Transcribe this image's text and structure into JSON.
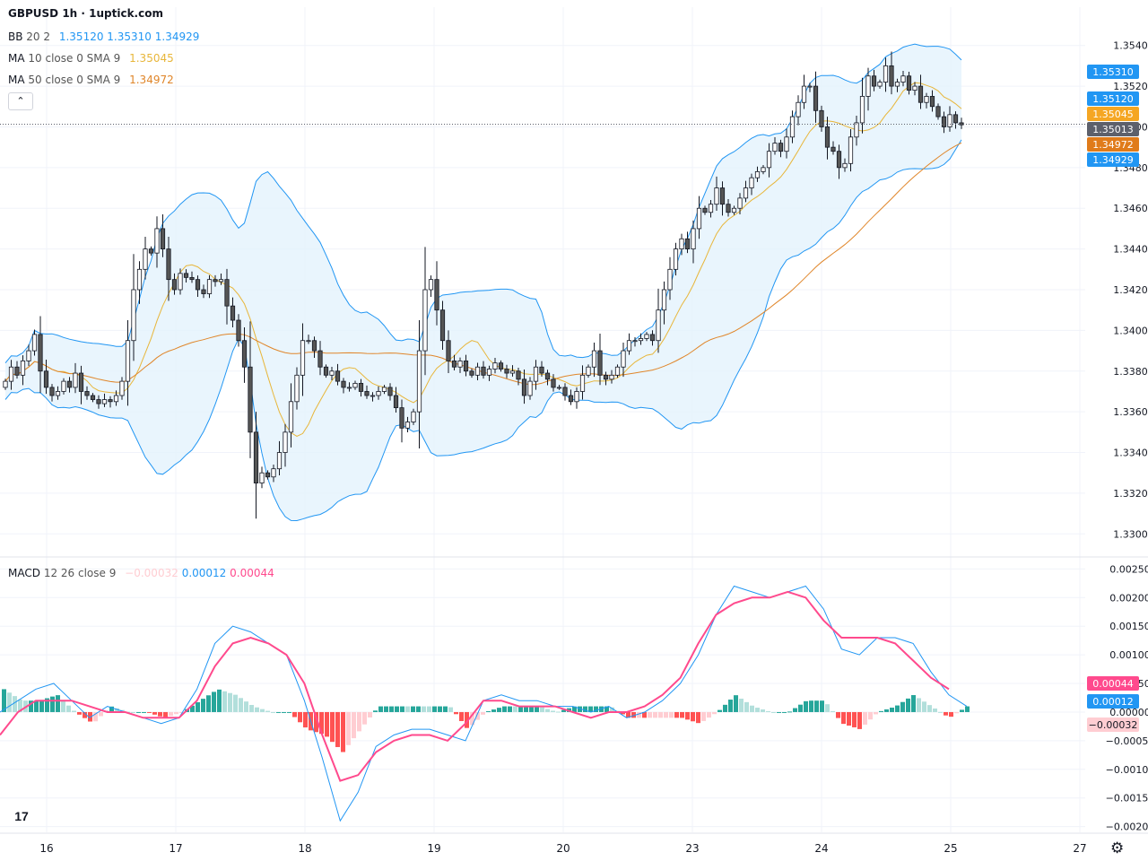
{
  "header": {
    "title": "GBPUSD 1h · 1uptick.com"
  },
  "legend": {
    "bb": {
      "label": "BB",
      "params": "20 2",
      "basis": "1.35120",
      "upper": "1.35310",
      "lower": "1.34929"
    },
    "ma10": {
      "label": "MA",
      "params": "10 close 0 SMA 9",
      "value": "1.35045"
    },
    "ma50": {
      "label": "MA",
      "params": "50 close 0 SMA 9",
      "value": "1.34972"
    },
    "macd": {
      "label": "MACD",
      "params": "12 26 close 9",
      "hist": "−0.00032",
      "macd": "0.00012",
      "signal": "0.00044"
    }
  },
  "colors": {
    "bull": "#ffffff",
    "bear": "#555555",
    "wick": "#131722",
    "bb_line": "#2196f3",
    "bb_fill": "#e3f2fd",
    "ma10": "#e8b63a",
    "ma50": "#e0862a",
    "macd_line": "#2196f3",
    "signal_line": "#ff4a8d",
    "hist_up_strong": "#26a69a",
    "hist_up_weak": "#b2dfdb",
    "hist_down_strong": "#ff5252",
    "hist_down_weak": "#ffcdd2",
    "grid": "#f0f3fa",
    "axis_text": "#131722"
  },
  "icons": {
    "logo": "tradingview-logo-icon",
    "settings": "gear-icon",
    "collapse": "chevron-up-icon"
  },
  "chart_data": [
    {
      "type": "candlestick",
      "symbol": "GBPUSD",
      "timeframe": "1h",
      "ylim": [
        1.329,
        1.355
      ],
      "yticks": [
        "1.35400",
        "1.35200",
        "1.35000",
        "1.34800",
        "1.34600",
        "1.34400",
        "1.34200",
        "1.34000",
        "1.33800",
        "1.33600",
        "1.33400",
        "1.33200",
        "1.33000"
      ],
      "xticks": [
        "16",
        "17",
        "18",
        "19",
        "20",
        "23",
        "24",
        "25",
        "27"
      ],
      "price_labels": [
        {
          "text": "1.35310",
          "value": 1.3531,
          "color": "#2196f3"
        },
        {
          "text": "1.35120",
          "value": 1.3512,
          "color": "#2196f3"
        },
        {
          "text": "1.35045",
          "value": 1.35045,
          "color": "#f5a623"
        },
        {
          "text": "1.35013",
          "value": 1.35013,
          "color": "#5d606b"
        },
        {
          "text": "1.34972",
          "value": 1.34972,
          "color": "#e07b1a"
        },
        {
          "text": "1.34929",
          "value": 1.34929,
          "color": "#2196f3"
        }
      ],
      "last_price": 1.35013,
      "series_close_path": [
        1.3375,
        1.3382,
        1.3378,
        1.3385,
        1.339,
        1.3398,
        1.338,
        1.3372,
        1.3368,
        1.337,
        1.3375,
        1.3372,
        1.3379,
        1.337,
        1.3368,
        1.3366,
        1.3364,
        1.3366,
        1.3365,
        1.3368,
        1.3375,
        1.3395,
        1.342,
        1.343,
        1.344,
        1.3438,
        1.345,
        1.344,
        1.3425,
        1.342,
        1.3428,
        1.3426,
        1.3425,
        1.342,
        1.3418,
        1.3425,
        1.3424,
        1.3425,
        1.3412,
        1.3405,
        1.3395,
        1.3382,
        1.335,
        1.3325,
        1.333,
        1.3328,
        1.3332,
        1.334,
        1.335,
        1.3365,
        1.3378,
        1.3395,
        1.3395,
        1.339,
        1.3382,
        1.3378,
        1.338,
        1.3375,
        1.3372,
        1.3372,
        1.3374,
        1.337,
        1.3368,
        1.3368,
        1.337,
        1.3372,
        1.3368,
        1.3362,
        1.3352,
        1.3355,
        1.336,
        1.339,
        1.342,
        1.3425,
        1.341,
        1.3395,
        1.3385,
        1.3382,
        1.3385,
        1.338,
        1.3378,
        1.3382,
        1.3378,
        1.3381,
        1.3384,
        1.3381,
        1.3379,
        1.338,
        1.3376,
        1.3368,
        1.3375,
        1.3382,
        1.3379,
        1.3376,
        1.3372,
        1.3372,
        1.3368,
        1.3365,
        1.337,
        1.3378,
        1.3382,
        1.339,
        1.3378,
        1.3376,
        1.3378,
        1.3382,
        1.339,
        1.3395,
        1.3395,
        1.3396,
        1.3398,
        1.3395,
        1.341,
        1.342,
        1.343,
        1.344,
        1.3445,
        1.344,
        1.345,
        1.346,
        1.3458,
        1.3462,
        1.347,
        1.3462,
        1.3458,
        1.346,
        1.3465,
        1.347,
        1.3475,
        1.3478,
        1.348,
        1.3488,
        1.3492,
        1.3488,
        1.3495,
        1.3505,
        1.3512,
        1.352,
        1.352,
        1.3508,
        1.35,
        1.349,
        1.3488,
        1.348,
        1.3482,
        1.3495,
        1.3502,
        1.3515,
        1.3525,
        1.352,
        1.3522,
        1.353,
        1.352,
        1.3522,
        1.3525,
        1.3518,
        1.352,
        1.3512,
        1.3515,
        1.351,
        1.3505,
        1.35,
        1.3506,
        1.3502,
        1.3501
      ]
    },
    {
      "type": "macd",
      "ylim": [
        -0.0021,
        0.0026
      ],
      "yticks": [
        "0.00250",
        "0.00200",
        "0.00150",
        "0.00100",
        "0.00050",
        "0.00000",
        "−0.00050",
        "−0.00100",
        "−0.00150",
        "−0.00200"
      ],
      "value_labels": [
        {
          "text": "0.00044",
          "value": 0.00044,
          "color": "#ff4a8d"
        },
        {
          "text": "0.00012",
          "value": 0.00012,
          "color": "#2196f3"
        },
        {
          "text": "−0.00032",
          "value": -0.00032,
          "color": "#ffcdd2"
        }
      ],
      "macd_path": [
        0.0,
        0.0002,
        0.0004,
        0.0005,
        0.0002,
        -0.0001,
        0.0001,
        0.0,
        -0.0001,
        -0.0002,
        -0.0001,
        0.0004,
        0.0012,
        0.0015,
        0.0014,
        0.0012,
        0.001,
        0.0002,
        -0.0008,
        -0.0019,
        -0.0014,
        -0.0006,
        -0.0004,
        -0.0003,
        -0.0003,
        -0.0004,
        -0.0005,
        0.0002,
        0.0003,
        0.0002,
        0.0002,
        0.0001,
        0.0001,
        0.0,
        0.0001,
        -0.0001,
        0.0,
        0.0002,
        0.0005,
        0.001,
        0.0017,
        0.0022,
        0.0021,
        0.002,
        0.0021,
        0.0022,
        0.0018,
        0.0011,
        0.001,
        0.0013,
        0.0013,
        0.0012,
        0.0007,
        0.0003,
        0.0001
      ],
      "signal_path": [
        -0.0004,
        0.0,
        0.0002,
        0.0002,
        0.0002,
        0.0001,
        0.0,
        0.0,
        -0.0001,
        -0.0001,
        -0.0001,
        0.0002,
        0.0008,
        0.0012,
        0.0013,
        0.0012,
        0.001,
        0.0005,
        -0.0004,
        -0.0012,
        -0.0011,
        -0.0007,
        -0.0005,
        -0.0004,
        -0.0004,
        -0.0005,
        -0.0002,
        0.0002,
        0.0002,
        0.0001,
        0.0001,
        0.0001,
        0.0,
        -0.0001,
        0.0,
        0.0,
        0.0001,
        0.0003,
        0.0006,
        0.0012,
        0.0017,
        0.0019,
        0.002,
        0.002,
        0.0021,
        0.002,
        0.0016,
        0.0013,
        0.0013,
        0.0013,
        0.0012,
        0.0009,
        0.0006,
        0.0004
      ]
    }
  ]
}
